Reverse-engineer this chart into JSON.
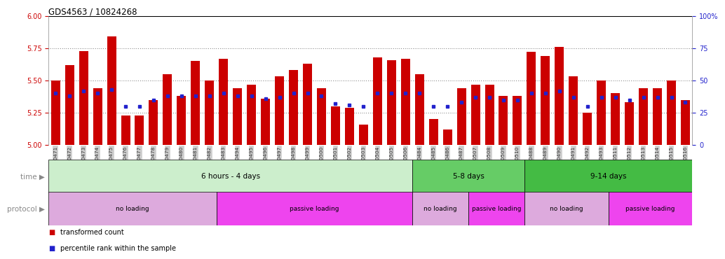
{
  "title": "GDS4563 / 10824268",
  "samples": [
    "GSM930471",
    "GSM930472",
    "GSM930473",
    "GSM930474",
    "GSM930475",
    "GSM930476",
    "GSM930477",
    "GSM930478",
    "GSM930479",
    "GSM930480",
    "GSM930481",
    "GSM930482",
    "GSM930483",
    "GSM930494",
    "GSM930495",
    "GSM930496",
    "GSM930497",
    "GSM930498",
    "GSM930499",
    "GSM930500",
    "GSM930501",
    "GSM930502",
    "GSM930503",
    "GSM930504",
    "GSM930505",
    "GSM930506",
    "GSM930484",
    "GSM930485",
    "GSM930486",
    "GSM930487",
    "GSM930507",
    "GSM930508",
    "GSM930509",
    "GSM930510",
    "GSM930488",
    "GSM930489",
    "GSM930490",
    "GSM930491",
    "GSM930492",
    "GSM930493",
    "GSM930511",
    "GSM930512",
    "GSM930513",
    "GSM930514",
    "GSM930515",
    "GSM930516"
  ],
  "bar_values": [
    5.5,
    5.62,
    5.73,
    5.44,
    5.84,
    5.23,
    5.23,
    5.35,
    5.55,
    5.38,
    5.65,
    5.5,
    5.67,
    5.44,
    5.47,
    5.36,
    5.53,
    5.58,
    5.63,
    5.44,
    5.3,
    5.29,
    5.16,
    5.68,
    5.66,
    5.67,
    5.55,
    5.2,
    5.12,
    5.44,
    5.47,
    5.47,
    5.38,
    5.38,
    5.72,
    5.69,
    5.76,
    5.53,
    5.25,
    5.5,
    5.4,
    5.33,
    5.44,
    5.44,
    5.5,
    5.35
  ],
  "dot_values": [
    5.4,
    5.38,
    5.42,
    5.4,
    5.43,
    5.3,
    5.3,
    5.35,
    5.38,
    5.38,
    5.38,
    5.38,
    5.4,
    5.38,
    5.38,
    5.36,
    5.37,
    5.4,
    5.4,
    5.38,
    5.32,
    5.31,
    5.3,
    5.4,
    5.4,
    5.4,
    5.4,
    5.3,
    5.3,
    5.33,
    5.37,
    5.37,
    5.35,
    5.35,
    5.4,
    5.4,
    5.42,
    5.37,
    5.3,
    5.37,
    5.37,
    5.35,
    5.37,
    5.37,
    5.37,
    5.33
  ],
  "ylim": [
    5.0,
    6.0
  ],
  "yticks": [
    5.0,
    5.25,
    5.5,
    5.75,
    6.0
  ],
  "right_yticks": [
    0,
    25,
    50,
    75,
    100
  ],
  "bar_color": "#CC0000",
  "dot_color": "#2222CC",
  "bar_base": 5.0,
  "time_groups": [
    {
      "label": "6 hours - 4 days",
      "start": 0,
      "end": 26,
      "color": "#CCEECC"
    },
    {
      "label": "5-8 days",
      "start": 26,
      "end": 34,
      "color": "#66CC66"
    },
    {
      "label": "9-14 days",
      "start": 34,
      "end": 46,
      "color": "#44BB44"
    }
  ],
  "protocol_groups": [
    {
      "label": "no loading",
      "start": 0,
      "end": 12,
      "color": "#DDAADD"
    },
    {
      "label": "passive loading",
      "start": 12,
      "end": 26,
      "color": "#EE44EE"
    },
    {
      "label": "no loading",
      "start": 26,
      "end": 30,
      "color": "#DDAADD"
    },
    {
      "label": "passive loading",
      "start": 30,
      "end": 34,
      "color": "#EE44EE"
    },
    {
      "label": "no loading",
      "start": 34,
      "end": 40,
      "color": "#DDAADD"
    },
    {
      "label": "passive loading",
      "start": 40,
      "end": 46,
      "color": "#EE44EE"
    }
  ],
  "bg_color": "#FFFFFF",
  "axis_label_color_left": "#CC0000",
  "axis_label_color_right": "#2222CC",
  "grid_color": "#000000",
  "tick_label_color": "#333333",
  "tick_bg_color": "#CCCCCC"
}
